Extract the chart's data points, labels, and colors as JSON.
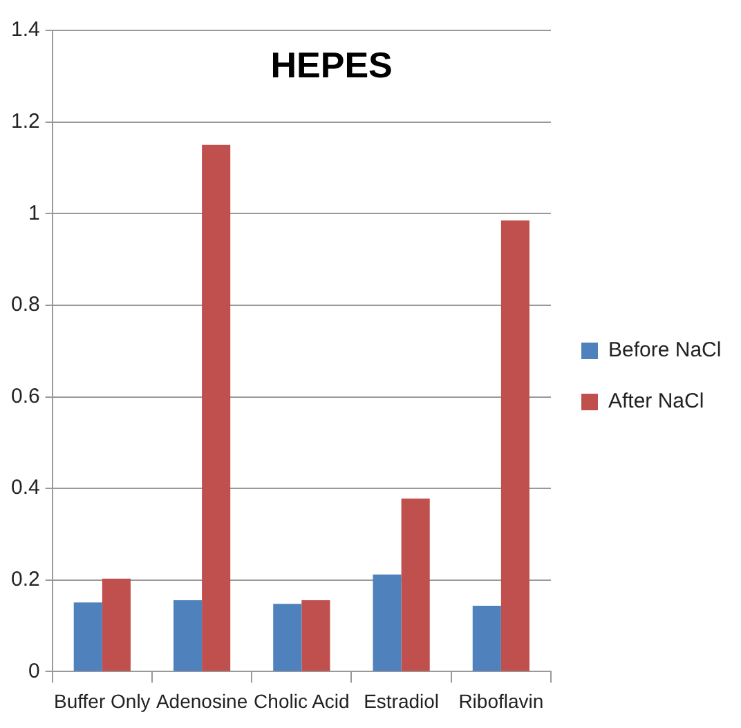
{
  "chart_data": {
    "type": "bar",
    "title": "HEPES",
    "categories": [
      "Buffer Only",
      "Adenosine",
      "Cholic Acid",
      "Estradiol",
      "Riboflavin"
    ],
    "series": [
      {
        "name": "Before NaCl",
        "color": "#4f81bd",
        "values": [
          0.151,
          0.156,
          0.148,
          0.212,
          0.144
        ]
      },
      {
        "name": "After NaCl",
        "color": "#c0504d",
        "values": [
          0.203,
          1.15,
          0.156,
          0.378,
          0.985
        ]
      }
    ],
    "ylim": [
      0,
      1.4
    ],
    "yticks": [
      0,
      0.2,
      0.4,
      0.6,
      0.8,
      1,
      1.2,
      1.4
    ],
    "grid": "y",
    "legend": "right"
  }
}
